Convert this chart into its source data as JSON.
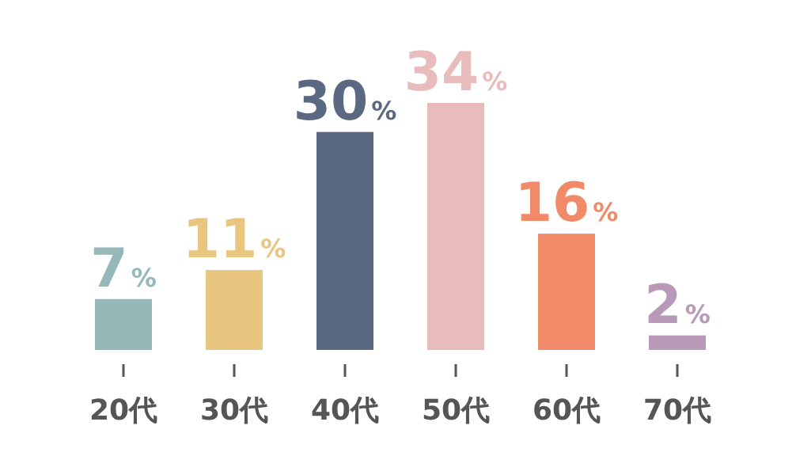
{
  "chart_data": {
    "type": "bar",
    "categories": [
      "20代",
      "30代",
      "40代",
      "50代",
      "60代",
      "70代"
    ],
    "values": [
      7,
      11,
      30,
      34,
      16,
      2
    ],
    "colors": [
      "#97b8b8",
      "#e8c680",
      "#5a6882",
      "#e8bcbc",
      "#f08a68",
      "#b89ab8"
    ],
    "value_labels": [
      "7%",
      "11%",
      "30%",
      "34%",
      "16%",
      "2%"
    ]
  }
}
